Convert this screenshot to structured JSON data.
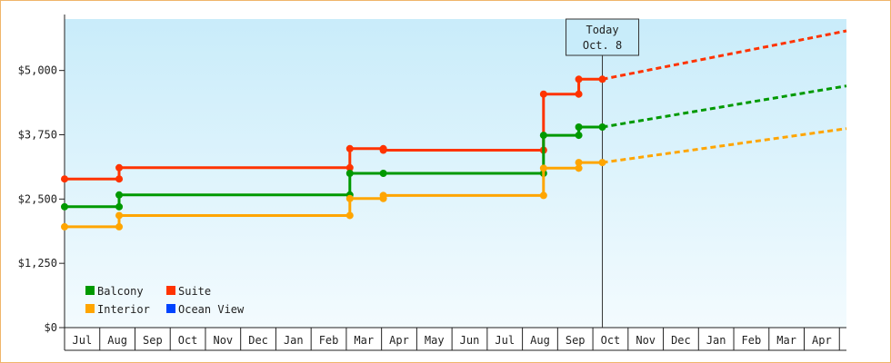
{
  "chart_data": {
    "type": "line",
    "title": "",
    "xlabel": "",
    "ylabel": "",
    "ylim": [
      0,
      6000
    ],
    "y_ticks": [
      "$0",
      "$1,250",
      "$2,500",
      "$3,750",
      "$5,000"
    ],
    "y_tick_values": [
      0,
      1250,
      2500,
      3750,
      5000
    ],
    "x_months": [
      "Jul",
      "Aug",
      "Sep",
      "Oct",
      "Nov",
      "Dec",
      "Jan",
      "Feb",
      "Mar",
      "Apr",
      "May",
      "Jun",
      "Jul",
      "Aug",
      "Sep",
      "Oct",
      "Nov",
      "Dec",
      "Jan",
      "Feb",
      "Mar",
      "Apr"
    ],
    "x_range_months": [
      0,
      22.2
    ],
    "today_marker": {
      "line1": "Today",
      "line2": "Oct. 8",
      "x": 15.27
    },
    "grid": false,
    "legend_placement": "bottom-left",
    "legend": [
      {
        "label": "Balcony",
        "color": "#009900"
      },
      {
        "label": "Suite",
        "color": "#ff3300"
      },
      {
        "label": "Interior",
        "color": "#ffa500"
      },
      {
        "label": "Ocean View",
        "color": "#0044ff"
      }
    ],
    "series": [
      {
        "name": "Suite",
        "color": "#ff3300",
        "points": [
          [
            0,
            2890
          ],
          [
            1.55,
            2890
          ],
          [
            1.55,
            3110
          ],
          [
            8.1,
            3110
          ],
          [
            8.1,
            3110
          ],
          [
            8.1,
            3110
          ],
          [
            8.1,
            3110
          ]
        ],
        "steps": [
          [
            0,
            2890
          ],
          [
            1.55,
            2890
          ],
          [
            1.55,
            3110
          ],
          [
            8.1,
            3110
          ],
          [
            8.1,
            3480
          ],
          [
            9.05,
            3480
          ],
          [
            9.05,
            3450
          ],
          [
            13.6,
            3450
          ],
          [
            13.6,
            4540
          ],
          [
            14.6,
            4540
          ],
          [
            14.6,
            4830
          ],
          [
            15.27,
            4830
          ]
        ],
        "markers": [
          [
            0,
            2890
          ],
          [
            1.55,
            2890
          ],
          [
            1.55,
            3110
          ],
          [
            8.1,
            3110
          ],
          [
            8.1,
            3480
          ],
          [
            9.05,
            3480
          ],
          [
            9.05,
            3450
          ],
          [
            13.6,
            3450
          ],
          [
            13.6,
            4540
          ],
          [
            14.6,
            4540
          ],
          [
            14.6,
            4830
          ],
          [
            15.27,
            4830
          ]
        ],
        "forecast": [
          [
            15.27,
            4830
          ],
          [
            22.2,
            5770
          ]
        ]
      },
      {
        "name": "Balcony",
        "color": "#009900",
        "steps": [
          [
            0,
            2350
          ],
          [
            1.55,
            2350
          ],
          [
            1.55,
            2580
          ],
          [
            8.1,
            2580
          ],
          [
            8.1,
            3000
          ],
          [
            9.05,
            3000
          ],
          [
            9.05,
            3000
          ],
          [
            13.6,
            3000
          ],
          [
            13.6,
            3740
          ],
          [
            14.6,
            3740
          ],
          [
            14.6,
            3900
          ],
          [
            15.27,
            3900
          ]
        ],
        "markers": [
          [
            0,
            2350
          ],
          [
            1.55,
            2350
          ],
          [
            1.55,
            2580
          ],
          [
            8.1,
            2580
          ],
          [
            8.1,
            3000
          ],
          [
            9.05,
            3000
          ],
          [
            13.6,
            3000
          ],
          [
            13.6,
            3740
          ],
          [
            14.6,
            3740
          ],
          [
            14.6,
            3900
          ],
          [
            15.27,
            3900
          ]
        ],
        "forecast": [
          [
            15.27,
            3900
          ],
          [
            22.2,
            4700
          ]
        ]
      },
      {
        "name": "Interior",
        "color": "#ffa500",
        "steps": [
          [
            0,
            1960
          ],
          [
            1.55,
            1960
          ],
          [
            1.55,
            2180
          ],
          [
            8.1,
            2180
          ],
          [
            8.1,
            2510
          ],
          [
            9.05,
            2510
          ],
          [
            9.05,
            2570
          ],
          [
            13.6,
            2570
          ],
          [
            13.6,
            3100
          ],
          [
            14.6,
            3100
          ],
          [
            14.6,
            3210
          ],
          [
            15.27,
            3210
          ]
        ],
        "markers": [
          [
            0,
            1960
          ],
          [
            1.55,
            1960
          ],
          [
            1.55,
            2180
          ],
          [
            8.1,
            2180
          ],
          [
            8.1,
            2510
          ],
          [
            9.05,
            2510
          ],
          [
            9.05,
            2570
          ],
          [
            13.6,
            2570
          ],
          [
            13.6,
            3100
          ],
          [
            14.6,
            3100
          ],
          [
            14.6,
            3210
          ],
          [
            15.27,
            3210
          ]
        ],
        "forecast": [
          [
            15.27,
            3210
          ],
          [
            22.2,
            3870
          ]
        ]
      }
    ]
  }
}
